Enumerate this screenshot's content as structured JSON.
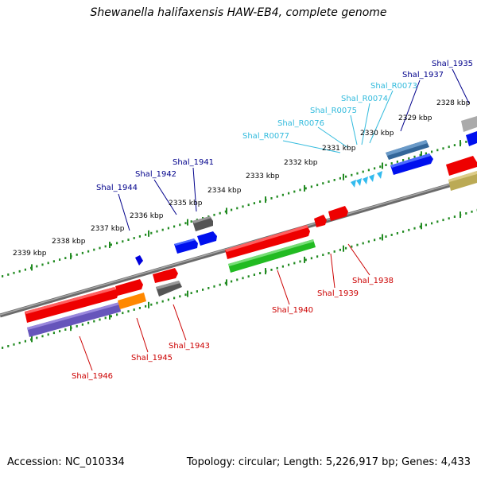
{
  "header": {
    "title": "Shewanella halifaxensis HAW-EB4, complete genome"
  },
  "footer": {
    "accession": "Accession: NC_010334",
    "topology": "Topology: circular; Length: 5,226,917 bp; Genes: 4,433"
  },
  "colors": {
    "backbone": "#808080",
    "ticks": "#228B22",
    "forward_label": "#00008B",
    "rna_label": "#33BBDD",
    "reverse_label": "#CC0000"
  },
  "kbp_labels": [
    "2339 kbp",
    "2338 kbp",
    "2337 kbp",
    "2336 kbp",
    "2335 kbp",
    "2334 kbp",
    "2333 kbp",
    "2332 kbp",
    "2331 kbp",
    "2330 kbp",
    "2329 kbp",
    "2328 kbp"
  ],
  "forward_gene_labels": [
    "Shal_1944",
    "Shal_1942",
    "Shal_1941",
    "Shal_1937",
    "Shal_1935"
  ],
  "rna_gene_labels": [
    "Shal_R0077",
    "Shal_R0076",
    "Shal_R0075",
    "Shal_R0074",
    "Shal_R0073"
  ],
  "reverse_gene_labels": [
    "Shal_1946",
    "Shal_1945",
    "Shal_1943",
    "Shal_1940",
    "Shal_1939",
    "Shal_1938"
  ]
}
